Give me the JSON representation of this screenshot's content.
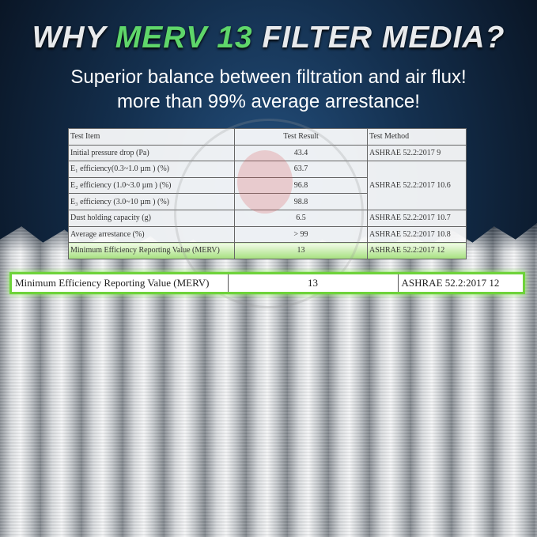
{
  "headline": {
    "part1": "WHY ",
    "highlight": "MERV 13",
    "part2": " FILTER MEDIA?"
  },
  "subtitle": [
    "Superior balance between filtration and air flux!",
    "more than 99% average arrestance!"
  ],
  "colors": {
    "highlight_green": "#5fd66a",
    "callout_border": "#6ed33a",
    "background": "#14304f"
  },
  "watermark": "TTRI",
  "table": {
    "headers": [
      "Test Item",
      "Test Result",
      "Test Method"
    ],
    "rows": [
      {
        "item": "Initial pressure drop (Pa)",
        "result": "43.4",
        "method": "ASHRAE 52.2:2017 9"
      },
      {
        "item": "E₁ efficiency(0.3~1.0 µm ) (%)",
        "result": "63.7",
        "method": "ASHRAE 52.2:2017 10.6"
      },
      {
        "item": "E₂ efficiency (1.0~3.0 µm ) (%)",
        "result": "96.8"
      },
      {
        "item": "E₃ efficiency (3.0~10 µm ) (%)",
        "result": "98.8"
      },
      {
        "item": "Dust holding capacity (g)",
        "result": "6.5",
        "method": "ASHRAE 52.2:2017 10.7"
      },
      {
        "item": "Average arrestance (%)",
        "result": "> 99",
        "method": "ASHRAE 52.2:2017 10.8"
      },
      {
        "item": "Minimum Efficiency Reporting Value (MERV)",
        "result": "13",
        "method": "ASHRAE 52.2:2017 12"
      }
    ]
  },
  "callout": {
    "item": "Minimum Efficiency Reporting Value (MERV)",
    "result": "13",
    "method": "ASHRAE 52.2:2017 12"
  }
}
